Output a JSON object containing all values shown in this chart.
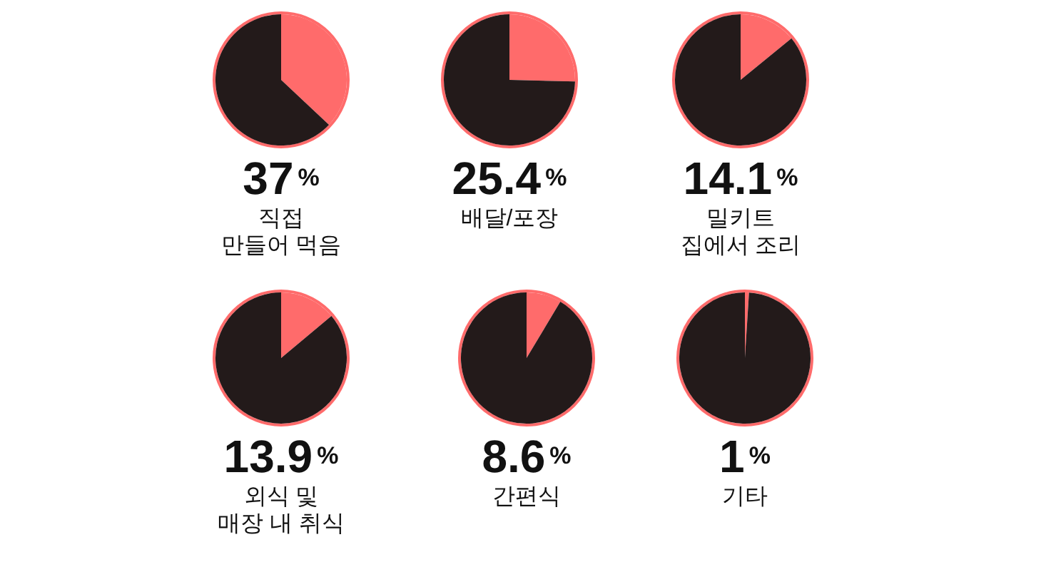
{
  "chart_data": [
    {
      "type": "pie",
      "title": "37%",
      "subtitle": "직접\n만들어 먹음",
      "categories": [
        null,
        null
      ],
      "values": [
        37,
        63
      ],
      "colors": [
        "#ff6b6b",
        "#231a1a"
      ]
    },
    {
      "type": "pie",
      "title": "25.4%",
      "subtitle": "배달/포장",
      "categories": [
        null,
        null
      ],
      "values": [
        25.4,
        74.6
      ],
      "colors": [
        "#ff6b6b",
        "#231a1a"
      ]
    },
    {
      "type": "pie",
      "title": "14.1%",
      "subtitle": "밀키트\n집에서 조리",
      "categories": [
        null,
        null
      ],
      "values": [
        14.1,
        85.9
      ],
      "colors": [
        "#ff6b6b",
        "#231a1a"
      ]
    },
    {
      "type": "pie",
      "title": "13.9%",
      "subtitle": "외식 및\n매장 내 취식",
      "categories": [
        null,
        null
      ],
      "values": [
        13.9,
        86.1
      ],
      "colors": [
        "#ff6b6b",
        "#231a1a"
      ]
    },
    {
      "type": "pie",
      "title": "8.6%",
      "subtitle": "간편식",
      "categories": [
        null,
        null
      ],
      "values": [
        8.6,
        91.4
      ],
      "colors": [
        "#ff6b6b",
        "#231a1a"
      ]
    },
    {
      "type": "pie",
      "title": "1%",
      "subtitle": "기타",
      "categories": [
        null,
        null
      ],
      "values": [
        1,
        99
      ],
      "colors": [
        "#ff6b6b",
        "#231a1a"
      ]
    }
  ]
}
